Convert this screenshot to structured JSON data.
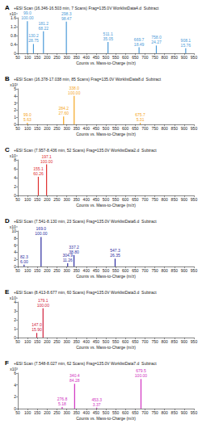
{
  "chart_data": [
    {
      "type": "bar",
      "title": "A",
      "subtitle": "+ESI Scan (16.346-16.503 min, 7 Scans) Frag=135.0V WorklistData4.d  Subtract",
      "x_label": "Counts vs. Mass-to-Charge (m/z)",
      "y_label": "x10⁴",
      "x": [
        99.0,
        130.2,
        181.2,
        298.3,
        511.1,
        669.7,
        758.0,
        908.1
      ],
      "values": [
        1.45,
        0.42,
        0.99,
        1.43,
        0.51,
        0.27,
        0.35,
        0.23
      ],
      "peak_labels": [
        "99.0\n100.00",
        "130.2\n28.75",
        "181.2\n68.22",
        "298.3\n98.47",
        "511.1\n35.05",
        "669.7\n18.49",
        "758.0\n24.27",
        "908.1\n15.76"
      ],
      "color": "#4a9ad8",
      "xlim": [
        50,
        950
      ],
      "xticks": [
        50,
        100,
        150,
        200,
        250,
        300,
        350,
        400,
        450,
        500,
        550,
        600,
        650,
        700,
        750,
        800,
        850,
        900,
        950
      ],
      "ylim": [
        0,
        1.6
      ],
      "yticks": [
        0,
        0.4,
        0.8,
        1.2,
        1.6
      ]
    },
    {
      "type": "bar",
      "title": "B",
      "subtitle": "+ESI Scan (16.378-17.038 min, 85 Scans) Frag=135.0V WorklistData8.d  Subtract",
      "x_label": "Counts vs. Mass-to-Charge (m/z)",
      "y_label": "x10³",
      "x": [
        99.0,
        284.2,
        338.0,
        675.7
      ],
      "values": [
        0.23,
        1.1,
        4.0,
        0.21
      ],
      "peak_labels": [
        "99.0\n5.63",
        "284.2\n27.60",
        "338.0\n100.00",
        "675.7\n5.31"
      ],
      "color": "#f5a623",
      "xlim": [
        50,
        950
      ],
      "xticks": [
        50,
        100,
        150,
        200,
        250,
        300,
        350,
        400,
        450,
        500,
        550,
        600,
        650,
        700,
        750,
        800,
        850,
        900,
        950
      ],
      "ylim": [
        0,
        5
      ],
      "yticks": [
        0,
        1,
        2,
        3,
        4,
        5
      ]
    },
    {
      "type": "bar",
      "title": "C",
      "subtitle": "+ESI Scan (7.957-8.436 min, 52 Scans) Frag=135.0V WorklistData2.d  Subtract",
      "x_label": "Counts vs. Mass-to-Charge (m/z)",
      "y_label": "x10⁴",
      "x": [
        155.1,
        197.1
      ],
      "values": [
        4.2,
        7.0
      ],
      "peak_labels": [
        "155.1\n60.26",
        "197.1\n100.00"
      ],
      "color": "#e03030",
      "xlim": [
        50,
        950
      ],
      "xticks": [
        50,
        100,
        150,
        200,
        250,
        300,
        350,
        400,
        450,
        500,
        550,
        600,
        650,
        700,
        750,
        800,
        850,
        900,
        950
      ],
      "ylim": [
        0,
        8
      ],
      "yticks": [
        0,
        2,
        4,
        6,
        8
      ]
    },
    {
      "type": "bar",
      "title": "D",
      "subtitle": "+ESI Scan (7.541-8.130 min, 23 Scans) Frag=135.0V WorklistData6.d  Subtract",
      "x_label": "Counts vs. Mass-to-Charge (m/z)",
      "y_label": "x10⁴",
      "x": [
        82.3,
        169.0,
        304.9,
        337.2,
        547.3
      ],
      "values": [
        0.5,
        8.3,
        0.93,
        3.22,
        2.19
      ],
      "peak_labels": [
        "82.3\n6.00",
        "169.0\n100.00",
        "304.9\n11.26",
        "337.2\n38.80",
        "547.3\n26.35"
      ],
      "color": "#2d2d9f",
      "xlim": [
        50,
        950
      ],
      "xticks": [
        50,
        100,
        150,
        200,
        250,
        300,
        350,
        400,
        450,
        500,
        550,
        600,
        650,
        700,
        750,
        800,
        850,
        900,
        950
      ],
      "ylim": [
        0,
        10
      ],
      "yticks": [
        0,
        2,
        4,
        6,
        8,
        10
      ]
    },
    {
      "type": "bar",
      "title": "E",
      "subtitle": "+ESI Scan (8.413-8.677 min, 60 Scans) Frag=135.0V WorklistData3.d  Subtract",
      "x_label": "Counts vs. Mass-to-Charge (m/z)",
      "y_label": "x10⁵",
      "x": [
        147.0,
        179.1
      ],
      "values": [
        0.52,
        3.3
      ],
      "peak_labels": [
        "147.0\n15.90",
        "179.1\n100.00"
      ],
      "color": "#d0203a",
      "xlim": [
        50,
        950
      ],
      "xticks": [
        50,
        100,
        150,
        200,
        250,
        300,
        350,
        400,
        450,
        500,
        550,
        600,
        650,
        700,
        750,
        800,
        850,
        900,
        950
      ],
      "ylim": [
        0,
        4
      ],
      "yticks": [
        0,
        1,
        2,
        3,
        4
      ]
    },
    {
      "type": "bar",
      "title": "F",
      "subtitle": "+ESI Scan (7.548-8.027 min, 62 Scans) Frag=135.0V WorklistData7.d  Subtract",
      "x_label": "Counts vs. Mass-to-Charge (m/z)",
      "y_label": "x10³",
      "x": [
        276.8,
        340.4,
        453.3,
        679.5
      ],
      "values": [
        0.26,
        4.2,
        0.17,
        5.0
      ],
      "peak_labels": [
        "276.8\n5.18",
        "340.4\n84.28",
        "453.3\n3.37",
        "679.5\n100.00"
      ],
      "color": "#d030c0",
      "xlim": [
        50,
        950
      ],
      "xticks": [
        50,
        100,
        150,
        200,
        250,
        300,
        350,
        400,
        450,
        500,
        550,
        600,
        650,
        700,
        750,
        800,
        850,
        900,
        950
      ],
      "ylim": [
        0,
        6
      ],
      "yticks": [
        0,
        2,
        4,
        6
      ]
    }
  ]
}
